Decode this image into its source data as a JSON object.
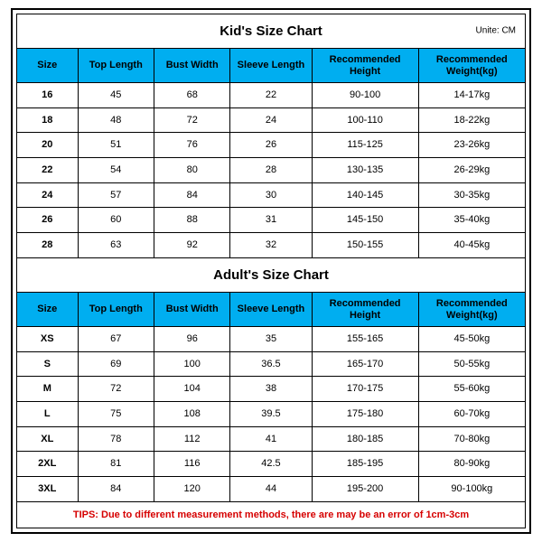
{
  "unit_label": "Unite: CM",
  "header_bg": "#00aef0",
  "border_color": "#000000",
  "tip_color": "#d60000",
  "columns": [
    "Size",
    "Top Length",
    "Bust Width",
    "Sleeve Length",
    "Recommended Height",
    "Recommended Weight(kg)"
  ],
  "col_widths_pct": [
    12,
    15,
    15,
    16,
    21,
    21
  ],
  "sections": [
    {
      "title": "Kid's Size Chart",
      "unit": true,
      "rows": [
        [
          "16",
          "45",
          "68",
          "22",
          "90-100",
          "14-17kg"
        ],
        [
          "18",
          "48",
          "72",
          "24",
          "100-110",
          "18-22kg"
        ],
        [
          "20",
          "51",
          "76",
          "26",
          "115-125",
          "23-26kg"
        ],
        [
          "22",
          "54",
          "80",
          "28",
          "130-135",
          "26-29kg"
        ],
        [
          "24",
          "57",
          "84",
          "30",
          "140-145",
          "30-35kg"
        ],
        [
          "26",
          "60",
          "88",
          "31",
          "145-150",
          "35-40kg"
        ],
        [
          "28",
          "63",
          "92",
          "32",
          "150-155",
          "40-45kg"
        ]
      ]
    },
    {
      "title": "Adult's Size Chart",
      "unit": false,
      "rows": [
        [
          "XS",
          "67",
          "96",
          "35",
          "155-165",
          "45-50kg"
        ],
        [
          "S",
          "69",
          "100",
          "36.5",
          "165-170",
          "50-55kg"
        ],
        [
          "M",
          "72",
          "104",
          "38",
          "170-175",
          "55-60kg"
        ],
        [
          "L",
          "75",
          "108",
          "39.5",
          "175-180",
          "60-70kg"
        ],
        [
          "XL",
          "78",
          "112",
          "41",
          "180-185",
          "70-80kg"
        ],
        [
          "2XL",
          "81",
          "116",
          "42.5",
          "185-195",
          "80-90kg"
        ],
        [
          "3XL",
          "84",
          "120",
          "44",
          "195-200",
          "90-100kg"
        ]
      ]
    }
  ],
  "tips": "TIPS: Due to different measurement methods, there are may be an error of 1cm-3cm"
}
